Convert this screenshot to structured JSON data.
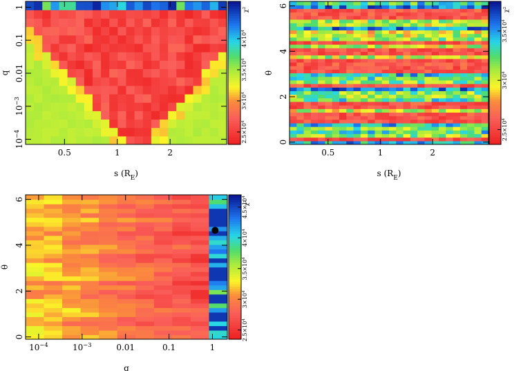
{
  "chart_data": [
    {
      "type": "heatmap",
      "id": "s-q",
      "xlabel": "s (R",
      "xlabel_sub": "E",
      "xlabel_close": ")",
      "ylabel": "q",
      "x_scale": "log",
      "y_scale": "log",
      "xlim": [
        0.3,
        4.2
      ],
      "ylim": [
        7e-05,
        1.5
      ],
      "xticks": [
        {
          "v": 0.5,
          "label": "0.5"
        },
        {
          "v": 1,
          "label": "1"
        },
        {
          "v": 2,
          "label": "2"
        }
      ],
      "yticks": [
        {
          "v": 1,
          "label": "1",
          "exp": ""
        },
        {
          "v": 0.1,
          "label": "0.1",
          "exp": ""
        },
        {
          "v": 0.01,
          "label": "0.01",
          "exp": ""
        },
        {
          "v": 0.001,
          "label": "10",
          "exp": "−3"
        },
        {
          "v": 0.0001,
          "label": "10",
          "exp": "−4"
        }
      ],
      "colorbar": {
        "title": "χ",
        "title_sup": "2",
        "vmin": 23000,
        "vmax": 46000,
        "ticks": [
          {
            "v": 25000,
            "label": "2.5×10",
            "exp": "4"
          },
          {
            "v": 30000,
            "label": "3×10",
            "exp": "4"
          },
          {
            "v": 35000,
            "label": "3.5×10",
            "exp": "4"
          },
          {
            "v": 40000,
            "label": "4×10",
            "exp": "4"
          }
        ]
      },
      "grid": {
        "nx": 24,
        "ny": 17,
        "pattern": "v-shape"
      }
    },
    {
      "type": "heatmap",
      "id": "s-theta",
      "xlabel": "s (R",
      "xlabel_sub": "E",
      "xlabel_close": ")",
      "ylabel": "θ",
      "x_scale": "log",
      "y_scale": "linear",
      "xlim": [
        0.3,
        4.2
      ],
      "ylim": [
        -0.1,
        6.2
      ],
      "xticks": [
        {
          "v": 0.5,
          "label": "0.5"
        },
        {
          "v": 1,
          "label": "1"
        },
        {
          "v": 2,
          "label": "2"
        }
      ],
      "yticks": [
        {
          "v": 0,
          "label": "0",
          "exp": ""
        },
        {
          "v": 2,
          "label": "2",
          "exp": ""
        },
        {
          "v": 4,
          "label": "4",
          "exp": ""
        },
        {
          "v": 6,
          "label": "6",
          "exp": ""
        }
      ],
      "colorbar": {
        "title": "χ",
        "title_sup": "2",
        "vmin": 23500,
        "vmax": 38000,
        "ticks": [
          {
            "v": 25000,
            "label": "2.5×10",
            "exp": "4"
          },
          {
            "v": 30000,
            "label": "3×10",
            "exp": "4"
          },
          {
            "v": 35000,
            "label": "3.5×10",
            "exp": "4"
          }
        ]
      },
      "grid": {
        "nx": 28,
        "ny": 40,
        "pattern": "noisy"
      }
    },
    {
      "type": "heatmap",
      "id": "q-theta",
      "xlabel": "q",
      "xlabel_sub": "",
      "xlabel_close": "",
      "ylabel": "θ",
      "x_scale": "log",
      "y_scale": "linear",
      "xlim": [
        5e-05,
        2.2
      ],
      "ylim": [
        -0.1,
        6.2
      ],
      "xticks": [
        {
          "v": 0.0001,
          "label": "10",
          "exp": "−4"
        },
        {
          "v": 0.001,
          "label": "10",
          "exp": "−3"
        },
        {
          "v": 0.01,
          "label": "0.01",
          "exp": ""
        },
        {
          "v": 0.1,
          "label": "0.1",
          "exp": ""
        },
        {
          "v": 1,
          "label": "1",
          "exp": ""
        }
      ],
      "yticks": [
        {
          "v": 0,
          "label": "0",
          "exp": ""
        },
        {
          "v": 2,
          "label": "2",
          "exp": ""
        },
        {
          "v": 4,
          "label": "4",
          "exp": ""
        },
        {
          "v": 6,
          "label": "6",
          "exp": ""
        }
      ],
      "colorbar": {
        "title": "χ",
        "title_sup": "2",
        "vmin": 23500,
        "vmax": 47000,
        "ticks": [
          {
            "v": 25000,
            "label": "2.5×10",
            "exp": "4"
          },
          {
            "v": 30000,
            "label": "3×10",
            "exp": "4"
          },
          {
            "v": 35000,
            "label": "3.5×10",
            "exp": "4"
          },
          {
            "v": 40000,
            "label": "4×10",
            "exp": "4"
          },
          {
            "v": 45000,
            "label": "4.5×10",
            "exp": "4"
          }
        ]
      },
      "marker": {
        "x": 1.15,
        "y": 4.65
      },
      "grid": {
        "nx": 11,
        "ny": 32,
        "pattern": "q-stripes"
      }
    }
  ]
}
